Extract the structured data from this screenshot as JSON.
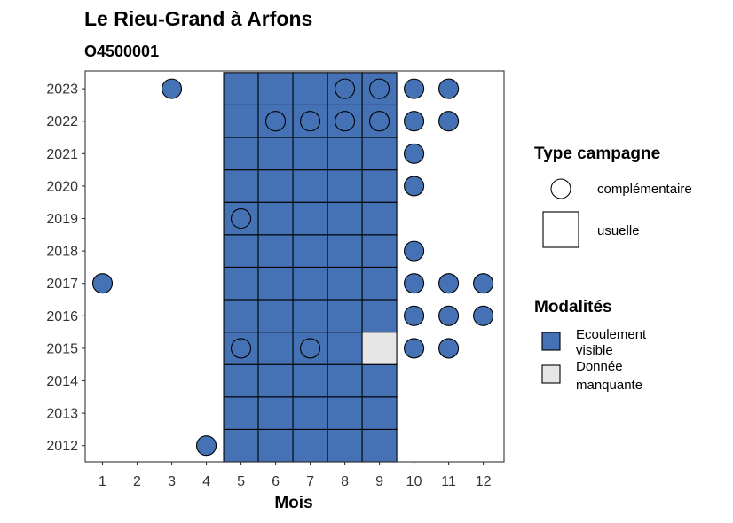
{
  "chart_data": {
    "type": "heatmap",
    "title": "Le Rieu-Grand à Arfons",
    "subtitle": "O4500001",
    "xlabel": "Mois",
    "ylabel": "",
    "x_ticks": [
      1,
      2,
      3,
      4,
      5,
      6,
      7,
      8,
      9,
      10,
      11,
      12
    ],
    "y_ticks": [
      2012,
      2013,
      2014,
      2015,
      2016,
      2017,
      2018,
      2019,
      2020,
      2021,
      2022,
      2023
    ],
    "xlim": [
      0.5,
      12.6
    ],
    "ylim": [
      2011.5,
      2023.55
    ],
    "grid": false,
    "modalite_colors": {
      "Ecoulement visible": "#4472b5",
      "Donnée manquante": "#e6e6e6"
    },
    "observations": [
      {
        "year": 2012,
        "month": 4,
        "type": "complémentaire",
        "modalite": "Ecoulement visible"
      },
      {
        "year": 2012,
        "month": 5,
        "type": "usuelle",
        "modalite": "Ecoulement visible"
      },
      {
        "year": 2012,
        "month": 6,
        "type": "usuelle",
        "modalite": "Ecoulement visible"
      },
      {
        "year": 2012,
        "month": 7,
        "type": "usuelle",
        "modalite": "Ecoulement visible"
      },
      {
        "year": 2012,
        "month": 8,
        "type": "usuelle",
        "modalite": "Ecoulement visible"
      },
      {
        "year": 2012,
        "month": 9,
        "type": "usuelle",
        "modalite": "Ecoulement visible"
      },
      {
        "year": 2013,
        "month": 5,
        "type": "usuelle",
        "modalite": "Ecoulement visible"
      },
      {
        "year": 2013,
        "month": 6,
        "type": "usuelle",
        "modalite": "Ecoulement visible"
      },
      {
        "year": 2013,
        "month": 7,
        "type": "usuelle",
        "modalite": "Ecoulement visible"
      },
      {
        "year": 2013,
        "month": 8,
        "type": "usuelle",
        "modalite": "Ecoulement visible"
      },
      {
        "year": 2013,
        "month": 9,
        "type": "usuelle",
        "modalite": "Ecoulement visible"
      },
      {
        "year": 2014,
        "month": 5,
        "type": "usuelle",
        "modalite": "Ecoulement visible"
      },
      {
        "year": 2014,
        "month": 6,
        "type": "usuelle",
        "modalite": "Ecoulement visible"
      },
      {
        "year": 2014,
        "month": 7,
        "type": "usuelle",
        "modalite": "Ecoulement visible"
      },
      {
        "year": 2014,
        "month": 8,
        "type": "usuelle",
        "modalite": "Ecoulement visible"
      },
      {
        "year": 2014,
        "month": 9,
        "type": "usuelle",
        "modalite": "Ecoulement visible"
      },
      {
        "year": 2015,
        "month": 5,
        "type": "usuelle",
        "modalite": "Ecoulement visible"
      },
      {
        "year": 2015,
        "month": 6,
        "type": "usuelle",
        "modalite": "Ecoulement visible"
      },
      {
        "year": 2015,
        "month": 7,
        "type": "usuelle",
        "modalite": "Ecoulement visible"
      },
      {
        "year": 2015,
        "month": 8,
        "type": "usuelle",
        "modalite": "Ecoulement visible"
      },
      {
        "year": 2015,
        "month": 9,
        "type": "usuelle",
        "modalite": "Donnée manquante"
      },
      {
        "year": 2015,
        "month": 5,
        "type": "complémentaire",
        "modalite": "Ecoulement visible"
      },
      {
        "year": 2015,
        "month": 7,
        "type": "complémentaire",
        "modalite": "Ecoulement visible"
      },
      {
        "year": 2015,
        "month": 10,
        "type": "complémentaire",
        "modalite": "Ecoulement visible"
      },
      {
        "year": 2015,
        "month": 11,
        "type": "complémentaire",
        "modalite": "Ecoulement visible"
      },
      {
        "year": 2016,
        "month": 5,
        "type": "usuelle",
        "modalite": "Ecoulement visible"
      },
      {
        "year": 2016,
        "month": 6,
        "type": "usuelle",
        "modalite": "Ecoulement visible"
      },
      {
        "year": 2016,
        "month": 7,
        "type": "usuelle",
        "modalite": "Ecoulement visible"
      },
      {
        "year": 2016,
        "month": 8,
        "type": "usuelle",
        "modalite": "Ecoulement visible"
      },
      {
        "year": 2016,
        "month": 9,
        "type": "usuelle",
        "modalite": "Ecoulement visible"
      },
      {
        "year": 2016,
        "month": 10,
        "type": "complémentaire",
        "modalite": "Ecoulement visible"
      },
      {
        "year": 2016,
        "month": 11,
        "type": "complémentaire",
        "modalite": "Ecoulement visible"
      },
      {
        "year": 2016,
        "month": 12,
        "type": "complémentaire",
        "modalite": "Ecoulement visible"
      },
      {
        "year": 2017,
        "month": 1,
        "type": "complémentaire",
        "modalite": "Ecoulement visible"
      },
      {
        "year": 2017,
        "month": 5,
        "type": "usuelle",
        "modalite": "Ecoulement visible"
      },
      {
        "year": 2017,
        "month": 6,
        "type": "usuelle",
        "modalite": "Ecoulement visible"
      },
      {
        "year": 2017,
        "month": 7,
        "type": "usuelle",
        "modalite": "Ecoulement visible"
      },
      {
        "year": 2017,
        "month": 8,
        "type": "usuelle",
        "modalite": "Ecoulement visible"
      },
      {
        "year": 2017,
        "month": 9,
        "type": "usuelle",
        "modalite": "Ecoulement visible"
      },
      {
        "year": 2017,
        "month": 10,
        "type": "complémentaire",
        "modalite": "Ecoulement visible"
      },
      {
        "year": 2017,
        "month": 11,
        "type": "complémentaire",
        "modalite": "Ecoulement visible"
      },
      {
        "year": 2017,
        "month": 12,
        "type": "complémentaire",
        "modalite": "Ecoulement visible"
      },
      {
        "year": 2018,
        "month": 5,
        "type": "usuelle",
        "modalite": "Ecoulement visible"
      },
      {
        "year": 2018,
        "month": 6,
        "type": "usuelle",
        "modalite": "Ecoulement visible"
      },
      {
        "year": 2018,
        "month": 7,
        "type": "usuelle",
        "modalite": "Ecoulement visible"
      },
      {
        "year": 2018,
        "month": 8,
        "type": "usuelle",
        "modalite": "Ecoulement visible"
      },
      {
        "year": 2018,
        "month": 9,
        "type": "usuelle",
        "modalite": "Ecoulement visible"
      },
      {
        "year": 2018,
        "month": 10,
        "type": "complémentaire",
        "modalite": "Ecoulement visible"
      },
      {
        "year": 2019,
        "month": 5,
        "type": "usuelle",
        "modalite": "Ecoulement visible"
      },
      {
        "year": 2019,
        "month": 6,
        "type": "usuelle",
        "modalite": "Ecoulement visible"
      },
      {
        "year": 2019,
        "month": 7,
        "type": "usuelle",
        "modalite": "Ecoulement visible"
      },
      {
        "year": 2019,
        "month": 8,
        "type": "usuelle",
        "modalite": "Ecoulement visible"
      },
      {
        "year": 2019,
        "month": 9,
        "type": "usuelle",
        "modalite": "Ecoulement visible"
      },
      {
        "year": 2019,
        "month": 5,
        "type": "complémentaire",
        "modalite": "Ecoulement visible"
      },
      {
        "year": 2020,
        "month": 5,
        "type": "usuelle",
        "modalite": "Ecoulement visible"
      },
      {
        "year": 2020,
        "month": 6,
        "type": "usuelle",
        "modalite": "Ecoulement visible"
      },
      {
        "year": 2020,
        "month": 7,
        "type": "usuelle",
        "modalite": "Ecoulement visible"
      },
      {
        "year": 2020,
        "month": 8,
        "type": "usuelle",
        "modalite": "Ecoulement visible"
      },
      {
        "year": 2020,
        "month": 9,
        "type": "usuelle",
        "modalite": "Ecoulement visible"
      },
      {
        "year": 2020,
        "month": 10,
        "type": "complémentaire",
        "modalite": "Ecoulement visible"
      },
      {
        "year": 2021,
        "month": 5,
        "type": "usuelle",
        "modalite": "Ecoulement visible"
      },
      {
        "year": 2021,
        "month": 6,
        "type": "usuelle",
        "modalite": "Ecoulement visible"
      },
      {
        "year": 2021,
        "month": 7,
        "type": "usuelle",
        "modalite": "Ecoulement visible"
      },
      {
        "year": 2021,
        "month": 8,
        "type": "usuelle",
        "modalite": "Ecoulement visible"
      },
      {
        "year": 2021,
        "month": 9,
        "type": "usuelle",
        "modalite": "Ecoulement visible"
      },
      {
        "year": 2021,
        "month": 10,
        "type": "complémentaire",
        "modalite": "Ecoulement visible"
      },
      {
        "year": 2022,
        "month": 5,
        "type": "usuelle",
        "modalite": "Ecoulement visible"
      },
      {
        "year": 2022,
        "month": 6,
        "type": "usuelle",
        "modalite": "Ecoulement visible"
      },
      {
        "year": 2022,
        "month": 7,
        "type": "usuelle",
        "modalite": "Ecoulement visible"
      },
      {
        "year": 2022,
        "month": 8,
        "type": "usuelle",
        "modalite": "Ecoulement visible"
      },
      {
        "year": 2022,
        "month": 9,
        "type": "usuelle",
        "modalite": "Ecoulement visible"
      },
      {
        "year": 2022,
        "month": 6,
        "type": "complémentaire",
        "modalite": "Ecoulement visible"
      },
      {
        "year": 2022,
        "month": 7,
        "type": "complémentaire",
        "modalite": "Ecoulement visible"
      },
      {
        "year": 2022,
        "month": 8,
        "type": "complémentaire",
        "modalite": "Ecoulement visible"
      },
      {
        "year": 2022,
        "month": 9,
        "type": "complémentaire",
        "modalite": "Ecoulement visible"
      },
      {
        "year": 2022,
        "month": 10,
        "type": "complémentaire",
        "modalite": "Ecoulement visible"
      },
      {
        "year": 2022,
        "month": 11,
        "type": "complémentaire",
        "modalite": "Ecoulement visible"
      },
      {
        "year": 2023,
        "month": 3,
        "type": "complémentaire",
        "modalite": "Ecoulement visible"
      },
      {
        "year": 2023,
        "month": 5,
        "type": "usuelle",
        "modalite": "Ecoulement visible"
      },
      {
        "year": 2023,
        "month": 6,
        "type": "usuelle",
        "modalite": "Ecoulement visible"
      },
      {
        "year": 2023,
        "month": 7,
        "type": "usuelle",
        "modalite": "Ecoulement visible"
      },
      {
        "year": 2023,
        "month": 8,
        "type": "usuelle",
        "modalite": "Ecoulement visible"
      },
      {
        "year": 2023,
        "month": 9,
        "type": "usuelle",
        "modalite": "Ecoulement visible"
      },
      {
        "year": 2023,
        "month": 8,
        "type": "complémentaire",
        "modalite": "Ecoulement visible"
      },
      {
        "year": 2023,
        "month": 9,
        "type": "complémentaire",
        "modalite": "Ecoulement visible"
      },
      {
        "year": 2023,
        "month": 10,
        "type": "complémentaire",
        "modalite": "Ecoulement visible"
      },
      {
        "year": 2023,
        "month": 11,
        "type": "complémentaire",
        "modalite": "Ecoulement visible"
      }
    ],
    "legend_position": "right",
    "legends": [
      {
        "title": "Type campagne",
        "entries": [
          {
            "label": "complémentaire",
            "shape": "circle"
          },
          {
            "label": "usuelle",
            "shape": "square"
          }
        ]
      },
      {
        "title": "Modalités",
        "entries": [
          {
            "label_lines": [
              "Ecoulement",
              "visible"
            ],
            "color": "#4472b5"
          },
          {
            "label_lines": [
              "Donnée",
              "manquante"
            ],
            "color": "#e6e6e6"
          }
        ]
      }
    ]
  }
}
